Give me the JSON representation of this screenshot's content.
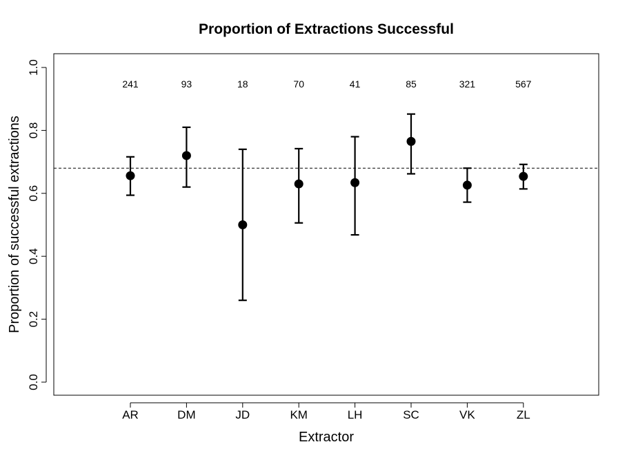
{
  "chart_data": {
    "type": "scatter",
    "title": "Proportion of Extractions Successful",
    "xlabel": "Extractor",
    "ylabel": "Proportion of successful extractions",
    "ylim": [
      0.0,
      1.0
    ],
    "yticks": [
      "0.0",
      "0.2",
      "0.4",
      "0.6",
      "0.8",
      "1.0"
    ],
    "categories": [
      "AR",
      "DM",
      "JD",
      "KM",
      "LH",
      "SC",
      "VK",
      "ZL"
    ],
    "counts": [
      "241",
      "93",
      "18",
      "70",
      "41",
      "85",
      "321",
      "567"
    ],
    "values": [
      0.656,
      0.72,
      0.5,
      0.63,
      0.634,
      0.765,
      0.626,
      0.654
    ],
    "lower": [
      0.594,
      0.62,
      0.26,
      0.506,
      0.468,
      0.662,
      0.572,
      0.614
    ],
    "upper": [
      0.716,
      0.81,
      0.74,
      0.742,
      0.78,
      0.852,
      0.68,
      0.692
    ],
    "reference_line": 0.68,
    "grid": false,
    "legend": "none"
  }
}
